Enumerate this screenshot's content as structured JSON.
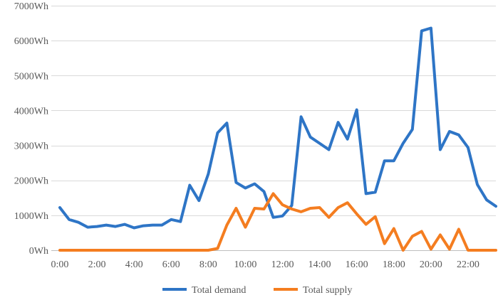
{
  "chart_data": {
    "type": "line",
    "x_tick_labels": [
      "0:00",
      "2:00",
      "4:00",
      "6:00",
      "8:00",
      "10:00",
      "12:00",
      "14:00",
      "16:00",
      "18:00",
      "20:00",
      "22:00"
    ],
    "y_tick_labels": [
      "0Wh",
      "1000Wh",
      "2000Wh",
      "3000Wh",
      "4000Wh",
      "5000Wh",
      "6000Wh",
      "7000Wh"
    ],
    "xlim_hours": [
      0,
      23.5
    ],
    "x_step_hours": 0.5,
    "ylim": [
      0,
      7000
    ],
    "y_unit": "Wh",
    "grid": "horizontal",
    "legend_position": "bottom",
    "series": [
      {
        "name": "Total demand",
        "color": "#2E75C6",
        "values": [
          1220,
          880,
          800,
          660,
          680,
          720,
          680,
          740,
          640,
          700,
          720,
          720,
          880,
          820,
          1860,
          1420,
          2180,
          3360,
          3640,
          1940,
          1780,
          1900,
          1680,
          940,
          980,
          1280,
          3820,
          3240,
          3060,
          2880,
          3660,
          3180,
          4020,
          1620,
          1660,
          2560,
          2560,
          3060,
          3460,
          6280,
          6360,
          2880,
          3400,
          3300,
          2940,
          1880,
          1440,
          1260
        ]
      },
      {
        "name": "Total supply",
        "color": "#F47D20",
        "values": [
          0,
          0,
          0,
          0,
          0,
          0,
          0,
          0,
          0,
          0,
          0,
          0,
          0,
          0,
          0,
          0,
          0,
          50,
          720,
          1200,
          660,
          1200,
          1180,
          1620,
          1300,
          1180,
          1100,
          1200,
          1220,
          940,
          1220,
          1360,
          1040,
          740,
          960,
          190,
          620,
          0,
          400,
          540,
          30,
          440,
          30,
          600,
          0,
          0,
          0,
          0
        ]
      }
    ]
  }
}
